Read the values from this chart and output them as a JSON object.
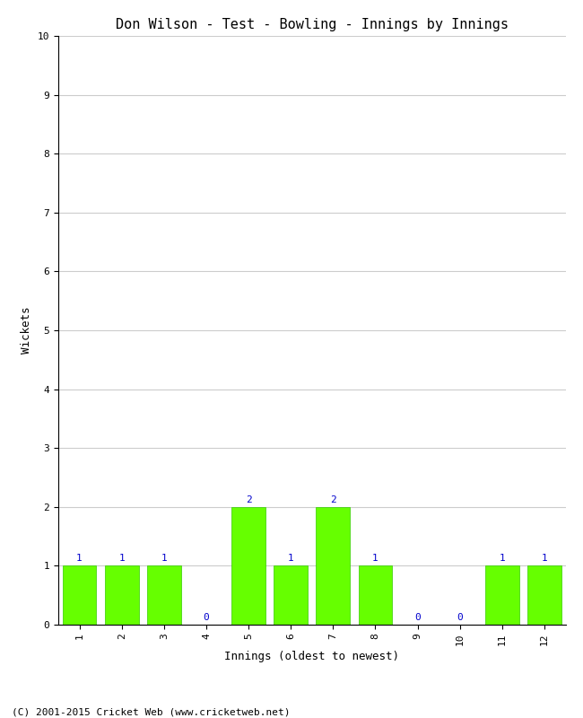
{
  "title": "Don Wilson - Test - Bowling - Innings by Innings",
  "xlabel": "Innings (oldest to newest)",
  "ylabel": "Wickets",
  "categories": [
    "1",
    "2",
    "3",
    "4",
    "5",
    "6",
    "7",
    "8",
    "9",
    "10",
    "11",
    "12"
  ],
  "values": [
    1,
    1,
    1,
    0,
    2,
    1,
    2,
    1,
    0,
    0,
    1,
    1
  ],
  "bar_color": "#66ff00",
  "bar_edge_color": "#33cc00",
  "ylim": [
    0,
    10
  ],
  "yticks": [
    0,
    1,
    2,
    3,
    4,
    5,
    6,
    7,
    8,
    9,
    10
  ],
  "label_color": "#0000cc",
  "label_fontsize": 8,
  "title_fontsize": 11,
  "axis_label_fontsize": 9,
  "tick_fontsize": 8,
  "background_color": "#ffffff",
  "grid_color": "#cccccc",
  "footer": "(C) 2001-2015 Cricket Web (www.cricketweb.net)",
  "footer_fontsize": 8
}
